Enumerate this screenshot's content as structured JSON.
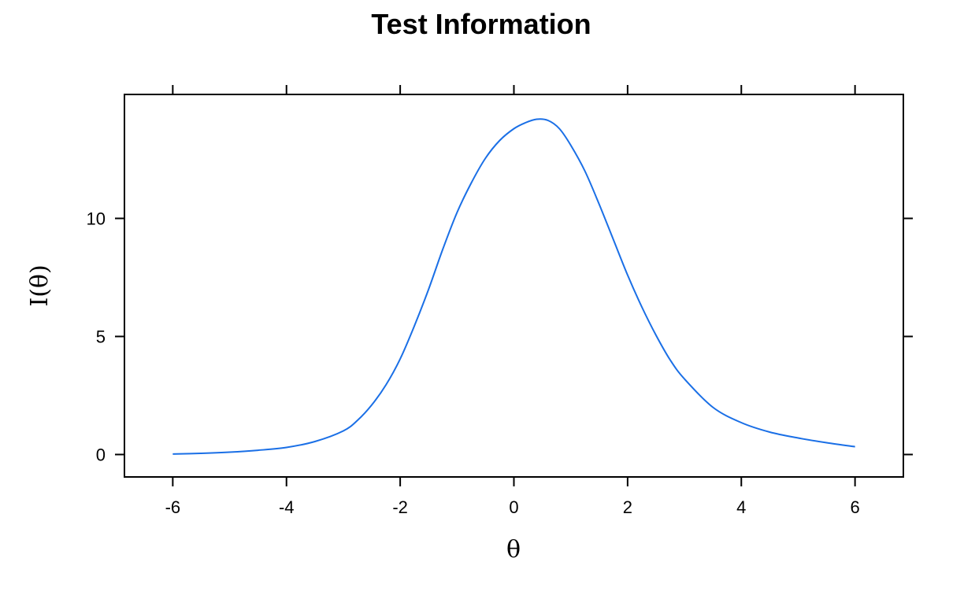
{
  "chart_data": {
    "type": "line",
    "title": "Test Information",
    "xlabel": "θ",
    "ylabel": "I(θ)",
    "xlim": [
      -6.85,
      6.85
    ],
    "ylim": [
      -0.95,
      15.25
    ],
    "x_ticks": [
      -6,
      -4,
      -2,
      0,
      2,
      4,
      6
    ],
    "x_tick_labels": [
      "-6",
      "-4",
      "-2",
      "0",
      "2",
      "4",
      "6"
    ],
    "y_ticks": [
      0,
      5,
      10
    ],
    "y_tick_labels": [
      "0",
      "5",
      "10"
    ],
    "grid": false,
    "ticks_mirrored": true,
    "series": [
      {
        "color": "#1a6fe6",
        "x": [
          -6,
          -5.5,
          -5,
          -4.5,
          -4,
          -3.5,
          -3,
          -2.75,
          -2.5,
          -2.25,
          -2,
          -1.75,
          -1.5,
          -1.25,
          -1,
          -0.75,
          -0.5,
          -0.25,
          0,
          0.2,
          0.4,
          0.6,
          0.8,
          1,
          1.25,
          1.5,
          1.75,
          2,
          2.25,
          2.5,
          2.75,
          3,
          3.5,
          4,
          4.5,
          5,
          5.5,
          6
        ],
        "y": [
          0.02,
          0.05,
          0.1,
          0.18,
          0.3,
          0.55,
          1.0,
          1.45,
          2.1,
          2.95,
          4.05,
          5.45,
          7.0,
          8.7,
          10.25,
          11.5,
          12.55,
          13.3,
          13.8,
          14.05,
          14.2,
          14.15,
          13.8,
          13.1,
          12.0,
          10.6,
          9.1,
          7.6,
          6.25,
          5.05,
          4.0,
          3.2,
          2.0,
          1.35,
          0.95,
          0.7,
          0.5,
          0.33
        ]
      }
    ]
  }
}
